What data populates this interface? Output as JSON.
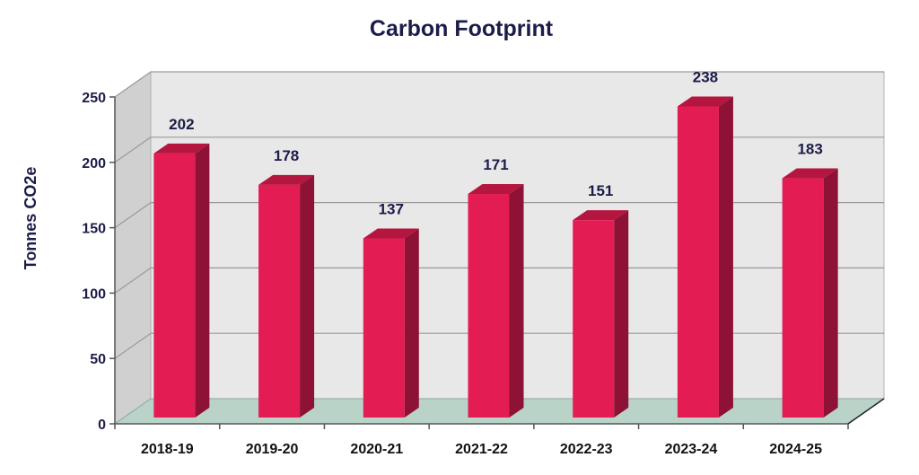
{
  "chart_data": {
    "type": "bar",
    "title": "Carbon Footprint",
    "xlabel": "",
    "ylabel": "Tonnes CO2e",
    "categories": [
      "2018-19",
      "2019-20",
      "2020-21",
      "2021-22",
      "2022-23",
      "2023-24",
      "2024-25"
    ],
    "values": [
      202,
      178,
      137,
      171,
      151,
      238,
      183
    ],
    "ylim": [
      0,
      250
    ],
    "yticks": [
      0,
      50,
      100,
      150,
      200,
      250
    ],
    "grid": true,
    "legend": "none",
    "style": "3d",
    "colors": {
      "bar_front": "#e31c54",
      "bar_side": "#8e1235",
      "bar_top": "#b5163f",
      "back_wall": "#e8e8e8",
      "side_wall": "#d0d0d0",
      "floor": "#b9d3c9",
      "text": "#1c1c4a"
    }
  }
}
